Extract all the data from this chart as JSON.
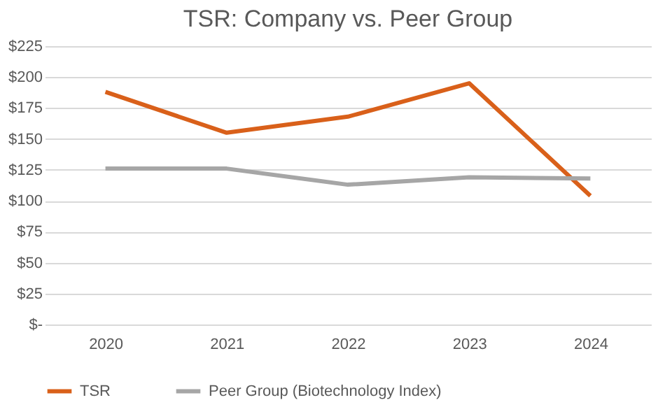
{
  "chart_data": {
    "type": "line",
    "title": "TSR: Company vs. Peer Group",
    "categories": [
      "2020",
      "2021",
      "2022",
      "2023",
      "2024"
    ],
    "series": [
      {
        "name": "TSR",
        "color": "#d9601a",
        "values": [
          188,
          155,
          168,
          195,
          104
        ]
      },
      {
        "name": "Peer Group (Biotechnology Index)",
        "color": "#a6a6a6",
        "values": [
          126,
          126,
          113,
          119,
          118
        ]
      }
    ],
    "ylim": [
      0,
      225
    ],
    "yticks": [
      {
        "value": 0,
        "label": "$-"
      },
      {
        "value": 25,
        "label": "$25"
      },
      {
        "value": 50,
        "label": "$50"
      },
      {
        "value": 75,
        "label": "$75"
      },
      {
        "value": 100,
        "label": "$100"
      },
      {
        "value": 125,
        "label": "$125"
      },
      {
        "value": 150,
        "label": "$150"
      },
      {
        "value": 175,
        "label": "$175"
      },
      {
        "value": 200,
        "label": "$200"
      },
      {
        "value": 225,
        "label": "$225"
      }
    ],
    "grid": "y",
    "legend": "bottom",
    "marker": "none",
    "line_style": "solid"
  }
}
